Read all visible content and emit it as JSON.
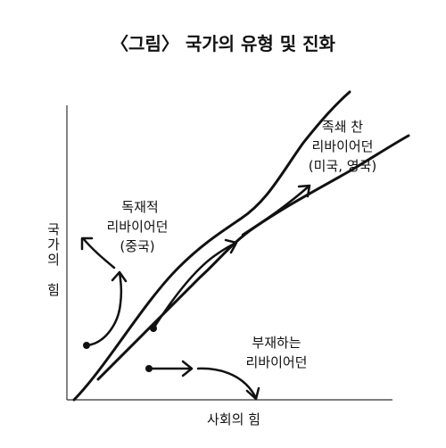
{
  "title": "〈그림〉 국가의 유형 및 진화",
  "x_axis_label": "사회의 힘",
  "y_axis_label_chars": [
    "국",
    "가",
    "의",
    "",
    "힘"
  ],
  "regions": {
    "despotic": [
      "독재적",
      "리바이어던",
      "(중국)"
    ],
    "shackled": [
      "족쇄 찬",
      "리바이어던",
      "(미국, 영국)"
    ],
    "absent": [
      "부재하는",
      "리바이어던"
    ]
  }
}
